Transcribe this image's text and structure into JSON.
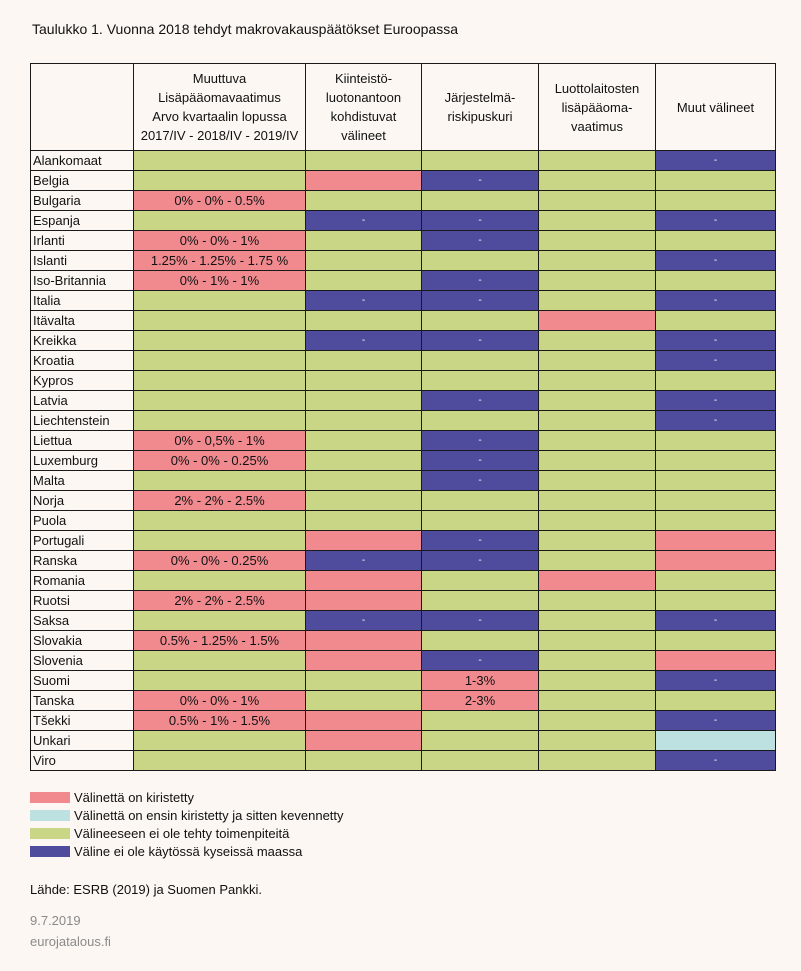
{
  "title": "Taulukko 1. Vuonna 2018 tehdyt makrovakauspäätökset Euroopassa",
  "colors": {
    "pink": "#f08a8f",
    "lightblue": "#bde0e0",
    "green": "#c9d685",
    "blue": "#4f4c9e"
  },
  "headers": [
    "",
    "Muuttuva\nLisäpääomavaatimus\nArvo kvartaalin lopussa\n2017/IV - 2018/IV - 2019/IV",
    "Kiinteistö-\nluotonantoon\nkohdistuvat\nvälineet",
    "Järjestelmä-\nriskipuskuri",
    "Luottolaitosten\nlisäpääoma-\nvaatimus",
    "Muut välineet"
  ],
  "rows": [
    {
      "country": "Alankomaat",
      "cells": [
        {
          "c": "green",
          "t": ""
        },
        {
          "c": "green",
          "t": ""
        },
        {
          "c": "green",
          "t": ""
        },
        {
          "c": "green",
          "t": ""
        },
        {
          "c": "blue",
          "t": "-"
        }
      ]
    },
    {
      "country": "Belgia",
      "cells": [
        {
          "c": "green",
          "t": ""
        },
        {
          "c": "pink",
          "t": ""
        },
        {
          "c": "blue",
          "t": "-"
        },
        {
          "c": "green",
          "t": ""
        },
        {
          "c": "green",
          "t": ""
        }
      ]
    },
    {
      "country": "Bulgaria",
      "cells": [
        {
          "c": "pink",
          "t": "0% - 0% - 0.5%"
        },
        {
          "c": "green",
          "t": ""
        },
        {
          "c": "green",
          "t": ""
        },
        {
          "c": "green",
          "t": ""
        },
        {
          "c": "green",
          "t": ""
        }
      ]
    },
    {
      "country": "Espanja",
      "cells": [
        {
          "c": "green",
          "t": ""
        },
        {
          "c": "blue",
          "t": "-"
        },
        {
          "c": "blue",
          "t": "-"
        },
        {
          "c": "green",
          "t": ""
        },
        {
          "c": "blue",
          "t": "-"
        }
      ]
    },
    {
      "country": "Irlanti",
      "cells": [
        {
          "c": "pink",
          "t": "0% - 0% - 1%"
        },
        {
          "c": "green",
          "t": ""
        },
        {
          "c": "blue",
          "t": "-"
        },
        {
          "c": "green",
          "t": ""
        },
        {
          "c": "green",
          "t": ""
        }
      ]
    },
    {
      "country": "Islanti",
      "cells": [
        {
          "c": "pink",
          "t": "1.25% - 1.25% - 1.75 %"
        },
        {
          "c": "green",
          "t": ""
        },
        {
          "c": "green",
          "t": ""
        },
        {
          "c": "green",
          "t": ""
        },
        {
          "c": "blue",
          "t": "-"
        }
      ]
    },
    {
      "country": "Iso-Britannia",
      "cells": [
        {
          "c": "pink",
          "t": "0% - 1% - 1%"
        },
        {
          "c": "green",
          "t": ""
        },
        {
          "c": "blue",
          "t": "-"
        },
        {
          "c": "green",
          "t": ""
        },
        {
          "c": "green",
          "t": ""
        }
      ]
    },
    {
      "country": "Italia",
      "cells": [
        {
          "c": "green",
          "t": ""
        },
        {
          "c": "blue",
          "t": "-"
        },
        {
          "c": "blue",
          "t": "-"
        },
        {
          "c": "green",
          "t": ""
        },
        {
          "c": "blue",
          "t": "-"
        }
      ]
    },
    {
      "country": "Itävalta",
      "cells": [
        {
          "c": "green",
          "t": ""
        },
        {
          "c": "green",
          "t": ""
        },
        {
          "c": "green",
          "t": ""
        },
        {
          "c": "pink",
          "t": ""
        },
        {
          "c": "green",
          "t": ""
        }
      ]
    },
    {
      "country": "Kreikka",
      "cells": [
        {
          "c": "green",
          "t": ""
        },
        {
          "c": "blue",
          "t": "-"
        },
        {
          "c": "blue",
          "t": "-"
        },
        {
          "c": "green",
          "t": ""
        },
        {
          "c": "blue",
          "t": "-"
        }
      ]
    },
    {
      "country": "Kroatia",
      "cells": [
        {
          "c": "green",
          "t": ""
        },
        {
          "c": "green",
          "t": ""
        },
        {
          "c": "green",
          "t": ""
        },
        {
          "c": "green",
          "t": ""
        },
        {
          "c": "blue",
          "t": "-"
        }
      ]
    },
    {
      "country": "Kypros",
      "cells": [
        {
          "c": "green",
          "t": ""
        },
        {
          "c": "green",
          "t": ""
        },
        {
          "c": "green",
          "t": ""
        },
        {
          "c": "green",
          "t": ""
        },
        {
          "c": "green",
          "t": ""
        }
      ]
    },
    {
      "country": "Latvia",
      "cells": [
        {
          "c": "green",
          "t": ""
        },
        {
          "c": "green",
          "t": ""
        },
        {
          "c": "blue",
          "t": "-"
        },
        {
          "c": "green",
          "t": ""
        },
        {
          "c": "blue",
          "t": "-"
        }
      ]
    },
    {
      "country": "Liechtenstein",
      "cells": [
        {
          "c": "green",
          "t": ""
        },
        {
          "c": "green",
          "t": ""
        },
        {
          "c": "green",
          "t": ""
        },
        {
          "c": "green",
          "t": ""
        },
        {
          "c": "blue",
          "t": "-"
        }
      ]
    },
    {
      "country": "Liettua",
      "cells": [
        {
          "c": "pink",
          "t": "0% - 0,5% - 1%"
        },
        {
          "c": "green",
          "t": ""
        },
        {
          "c": "blue",
          "t": "-"
        },
        {
          "c": "green",
          "t": ""
        },
        {
          "c": "green",
          "t": ""
        }
      ]
    },
    {
      "country": "Luxemburg",
      "cells": [
        {
          "c": "pink",
          "t": "0% - 0% - 0.25%"
        },
        {
          "c": "green",
          "t": ""
        },
        {
          "c": "blue",
          "t": "-"
        },
        {
          "c": "green",
          "t": ""
        },
        {
          "c": "green",
          "t": ""
        }
      ]
    },
    {
      "country": "Malta",
      "cells": [
        {
          "c": "green",
          "t": ""
        },
        {
          "c": "green",
          "t": ""
        },
        {
          "c": "blue",
          "t": "-"
        },
        {
          "c": "green",
          "t": ""
        },
        {
          "c": "green",
          "t": ""
        }
      ]
    },
    {
      "country": "Norja",
      "cells": [
        {
          "c": "pink",
          "t": "2% - 2% - 2.5%"
        },
        {
          "c": "green",
          "t": ""
        },
        {
          "c": "green",
          "t": ""
        },
        {
          "c": "green",
          "t": ""
        },
        {
          "c": "green",
          "t": ""
        }
      ]
    },
    {
      "country": "Puola",
      "cells": [
        {
          "c": "green",
          "t": ""
        },
        {
          "c": "green",
          "t": ""
        },
        {
          "c": "green",
          "t": ""
        },
        {
          "c": "green",
          "t": ""
        },
        {
          "c": "green",
          "t": ""
        }
      ]
    },
    {
      "country": "Portugali",
      "cells": [
        {
          "c": "green",
          "t": ""
        },
        {
          "c": "pink",
          "t": ""
        },
        {
          "c": "blue",
          "t": "-"
        },
        {
          "c": "green",
          "t": ""
        },
        {
          "c": "pink",
          "t": ""
        }
      ]
    },
    {
      "country": "Ranska",
      "cells": [
        {
          "c": "pink",
          "t": "0% - 0% - 0.25%"
        },
        {
          "c": "blue",
          "t": "-"
        },
        {
          "c": "blue",
          "t": "-"
        },
        {
          "c": "green",
          "t": ""
        },
        {
          "c": "pink",
          "t": ""
        }
      ]
    },
    {
      "country": "Romania",
      "cells": [
        {
          "c": "green",
          "t": ""
        },
        {
          "c": "pink",
          "t": ""
        },
        {
          "c": "green",
          "t": ""
        },
        {
          "c": "pink",
          "t": ""
        },
        {
          "c": "green",
          "t": ""
        }
      ]
    },
    {
      "country": "Ruotsi",
      "cells": [
        {
          "c": "pink",
          "t": "2% - 2% - 2.5%"
        },
        {
          "c": "pink",
          "t": ""
        },
        {
          "c": "green",
          "t": ""
        },
        {
          "c": "green",
          "t": ""
        },
        {
          "c": "green",
          "t": ""
        }
      ]
    },
    {
      "country": "Saksa",
      "cells": [
        {
          "c": "green",
          "t": ""
        },
        {
          "c": "blue",
          "t": "-"
        },
        {
          "c": "blue",
          "t": "-"
        },
        {
          "c": "green",
          "t": ""
        },
        {
          "c": "blue",
          "t": "-"
        }
      ]
    },
    {
      "country": "Slovakia",
      "cells": [
        {
          "c": "pink",
          "t": "0.5% - 1.25% - 1.5%"
        },
        {
          "c": "pink",
          "t": ""
        },
        {
          "c": "green",
          "t": ""
        },
        {
          "c": "green",
          "t": ""
        },
        {
          "c": "green",
          "t": ""
        }
      ]
    },
    {
      "country": "Slovenia",
      "cells": [
        {
          "c": "green",
          "t": ""
        },
        {
          "c": "pink",
          "t": ""
        },
        {
          "c": "blue",
          "t": "-"
        },
        {
          "c": "green",
          "t": ""
        },
        {
          "c": "pink",
          "t": ""
        }
      ]
    },
    {
      "country": "Suomi",
      "cells": [
        {
          "c": "green",
          "t": ""
        },
        {
          "c": "green",
          "t": ""
        },
        {
          "c": "pink",
          "t": "1-3%"
        },
        {
          "c": "green",
          "t": ""
        },
        {
          "c": "blue",
          "t": "-"
        }
      ]
    },
    {
      "country": "Tanska",
      "cells": [
        {
          "c": "pink",
          "t": "0% - 0% - 1%"
        },
        {
          "c": "green",
          "t": ""
        },
        {
          "c": "pink",
          "t": "2-3%"
        },
        {
          "c": "green",
          "t": ""
        },
        {
          "c": "green",
          "t": ""
        }
      ]
    },
    {
      "country": "Tšekki",
      "cells": [
        {
          "c": "pink",
          "t": "0.5% - 1% - 1.5%"
        },
        {
          "c": "pink",
          "t": ""
        },
        {
          "c": "green",
          "t": ""
        },
        {
          "c": "green",
          "t": ""
        },
        {
          "c": "blue",
          "t": "-"
        }
      ]
    },
    {
      "country": "Unkari",
      "cells": [
        {
          "c": "green",
          "t": ""
        },
        {
          "c": "pink",
          "t": ""
        },
        {
          "c": "green",
          "t": ""
        },
        {
          "c": "green",
          "t": ""
        },
        {
          "c": "lightblue",
          "t": ""
        }
      ]
    },
    {
      "country": "Viro",
      "cells": [
        {
          "c": "green",
          "t": ""
        },
        {
          "c": "green",
          "t": ""
        },
        {
          "c": "green",
          "t": ""
        },
        {
          "c": "green",
          "t": ""
        },
        {
          "c": "blue",
          "t": "-"
        }
      ]
    }
  ],
  "legend": [
    {
      "color": "pink",
      "label": "Välinettä  on kiristetty"
    },
    {
      "color": "lightblue",
      "label": "Välinettä  on ensin kiristetty ja sitten kevennetty"
    },
    {
      "color": "green",
      "label": "Välineeseen ei ole tehty toimenpiteitä"
    },
    {
      "color": "blue",
      "label": "Väline ei ole käytössä kyseissä maassa"
    }
  ],
  "source": "Lähde: ESRB (2019) ja Suomen Pankki.",
  "date": "9.7.2019",
  "site": "eurojatalous.fi"
}
